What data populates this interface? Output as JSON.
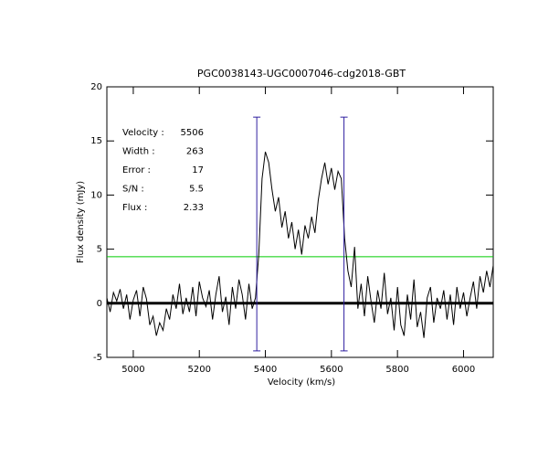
{
  "chart_data": {
    "type": "line",
    "title": "PGC0038143-UGC0007046-cdg2018-GBT",
    "xlabel": "Velocity (km/s)",
    "ylabel": "Flux density (mJy)",
    "xlim": [
      4920,
      6090
    ],
    "ylim": [
      -5,
      20
    ],
    "xticks": [
      5000,
      5200,
      5400,
      5600,
      5800,
      6000
    ],
    "yticks": [
      -5,
      0,
      5,
      10,
      15,
      20
    ],
    "color": "#000000",
    "x": [
      4920,
      4930,
      4940,
      4950,
      4960,
      4970,
      4980,
      4990,
      5000,
      5010,
      5020,
      5030,
      5040,
      5050,
      5060,
      5070,
      5080,
      5090,
      5100,
      5110,
      5120,
      5130,
      5140,
      5150,
      5160,
      5170,
      5180,
      5190,
      5200,
      5210,
      5220,
      5230,
      5240,
      5250,
      5260,
      5270,
      5280,
      5290,
      5300,
      5310,
      5320,
      5330,
      5340,
      5350,
      5360,
      5370,
      5380,
      5390,
      5400,
      5410,
      5420,
      5430,
      5440,
      5450,
      5460,
      5470,
      5480,
      5490,
      5500,
      5510,
      5520,
      5530,
      5540,
      5550,
      5560,
      5570,
      5580,
      5590,
      5600,
      5610,
      5620,
      5630,
      5640,
      5650,
      5660,
      5670,
      5680,
      5690,
      5700,
      5710,
      5720,
      5730,
      5740,
      5750,
      5760,
      5770,
      5780,
      5790,
      5800,
      5810,
      5820,
      5830,
      5840,
      5850,
      5860,
      5870,
      5880,
      5890,
      5900,
      5910,
      5920,
      5930,
      5940,
      5950,
      5960,
      5970,
      5980,
      5990,
      6000,
      6010,
      6020,
      6030,
      6040,
      6050,
      6060,
      6070,
      6080,
      6090
    ],
    "values": [
      0.5,
      -0.8,
      1.0,
      0.2,
      1.3,
      -0.5,
      0.8,
      -1.5,
      0.3,
      1.2,
      -1.2,
      1.5,
      0.4,
      -2.0,
      -1.2,
      -3.0,
      -1.8,
      -2.5,
      -0.5,
      -1.5,
      0.8,
      -0.5,
      1.8,
      -1.0,
      0.5,
      -0.8,
      1.5,
      -1.2,
      2.0,
      0.5,
      -0.3,
      1.2,
      -1.5,
      0.8,
      2.5,
      -0.8,
      0.6,
      -2.0,
      1.5,
      -0.5,
      2.2,
      0.8,
      -1.5,
      1.8,
      -0.5,
      0.5,
      4.5,
      11.5,
      14.0,
      13.0,
      10.5,
      8.5,
      9.8,
      7.0,
      8.5,
      6.0,
      7.5,
      5.0,
      6.8,
      4.5,
      7.2,
      6.0,
      8.0,
      6.5,
      9.5,
      11.5,
      13.0,
      11.0,
      12.5,
      10.5,
      12.2,
      11.5,
      6.0,
      3.0,
      1.5,
      5.2,
      -0.5,
      1.8,
      -1.2,
      2.5,
      0.2,
      -1.8,
      1.2,
      -0.5,
      2.8,
      -1.0,
      0.5,
      -2.5,
      1.5,
      -2.0,
      -3.0,
      0.8,
      -1.5,
      2.2,
      -2.2,
      -0.8,
      -3.2,
      0.5,
      1.5,
      -1.8,
      0.5,
      -0.5,
      1.2,
      -1.5,
      0.8,
      -2.0,
      1.5,
      -0.5,
      1.0,
      -1.2,
      0.5,
      2.0,
      -0.5,
      2.5,
      1.0,
      3.0,
      1.5,
      3.5
    ],
    "baseline": 0,
    "hline": {
      "value": 4.3,
      "color": "#00cc00"
    },
    "vlines": [
      5374,
      5638
    ],
    "vline_range": [
      -4.4,
      17.2
    ],
    "vline_color": "#3020a0",
    "annotation_color": "#2010a0",
    "annotations": [
      {
        "label": "Velocity :",
        "value": 5506
      },
      {
        "label": "Width :",
        "value": 263
      },
      {
        "label": "Error :",
        "value": 17
      },
      {
        "label": "S/N :",
        "value": 5.5
      },
      {
        "label": "Flux :",
        "value": 2.33
      }
    ]
  }
}
